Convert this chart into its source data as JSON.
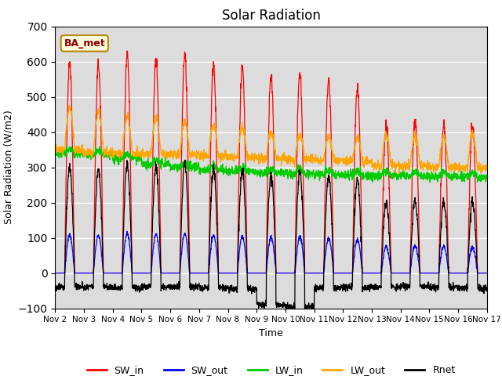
{
  "title": "Solar Radiation",
  "ylabel": "Solar Radiation (W/m2)",
  "xlabel": "Time",
  "ylim": [
    -100,
    700
  ],
  "yticks": [
    -100,
    0,
    100,
    200,
    300,
    400,
    500,
    600,
    700
  ],
  "annotation": "BA_met",
  "background_color": "#dcdcdc",
  "legend_labels": [
    "SW_in",
    "SW_out",
    "LW_in",
    "LW_out",
    "Rnet"
  ],
  "line_colors": [
    "red",
    "blue",
    "#00cc00",
    "orange",
    "black"
  ],
  "num_days": 15,
  "points_per_day": 144
}
